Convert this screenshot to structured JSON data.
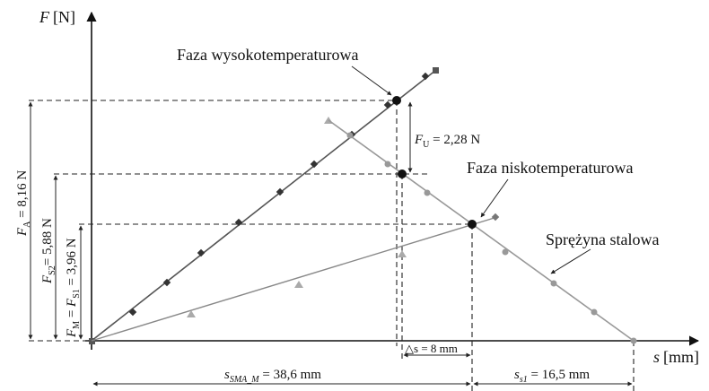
{
  "axes": {
    "y_symbol": "F",
    "y_unit": "[N]",
    "x_symbol": "s",
    "x_unit": "[mm]"
  },
  "labels": {
    "high_phase": "Faza wysokotemperaturowa",
    "low_phase": "Faza niskotemperaturowa",
    "steel_spring": "Sprężyna stalowa"
  },
  "annotations": {
    "FU": {
      "sym": "F",
      "sub": "U",
      "rest": " = 2,28 N"
    },
    "FA": {
      "sym": "F",
      "sub": "A",
      "rest": " = 8,16 N"
    },
    "FS2": {
      "sym": "F",
      "sub": "S2",
      "rest": "= 5,88 N"
    },
    "FM": {
      "sym": "F",
      "sub": "M",
      "mid": " = ",
      "sym2": "F",
      "sub2": "S1",
      "rest": " = 3,96 N"
    },
    "ds": {
      "sym": "△s",
      "rest": " = 8 mm"
    },
    "sSMA": {
      "sym": "s",
      "sub": "SMA_M",
      "rest": " = 38,6 mm"
    },
    "ss1": {
      "sym": "s",
      "sub": "s1",
      "rest": " = 16,5 mm"
    }
  },
  "colors": {
    "high_phase_line": "#555555",
    "low_phase_line": "#888888",
    "spring_line": "#999999",
    "diamond_marker": "#333333",
    "triangle_marker": "#aaaaaa",
    "circle_marker": "#999999",
    "intersection": "#111111"
  }
}
